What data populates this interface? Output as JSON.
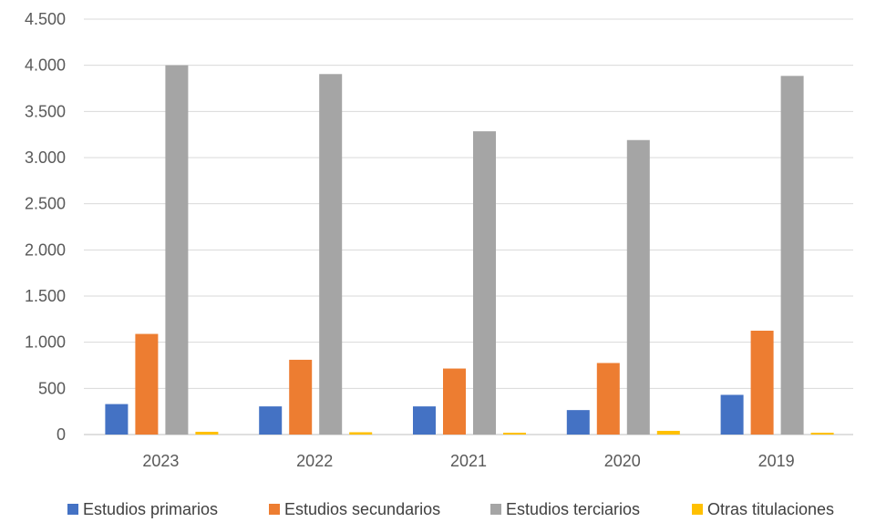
{
  "chart_data": {
    "type": "bar",
    "categories": [
      "2023",
      "2022",
      "2021",
      "2020",
      "2019"
    ],
    "ylim": [
      0,
      4500
    ],
    "yticks": [
      0,
      500,
      1000,
      1500,
      2000,
      2500,
      3000,
      3500,
      4000,
      4500
    ],
    "ytick_labels": [
      "0",
      "500",
      "1.000",
      "1.500",
      "2.000",
      "2.500",
      "3.000",
      "3.500",
      "4.000",
      "4.500"
    ],
    "grid": true,
    "legend_position": "bottom",
    "series": [
      {
        "name": "Estudios primarios",
        "color": "#4472C4",
        "values": [
          330,
          305,
          305,
          265,
          430
        ]
      },
      {
        "name": "Estudios secundarios",
        "color": "#ED7D31",
        "values": [
          1090,
          810,
          715,
          775,
          1125
        ]
      },
      {
        "name": "Estudios terciarios",
        "color": "#A5A5A5",
        "values": [
          4000,
          3905,
          3285,
          3190,
          3885
        ]
      },
      {
        "name": "Otras titulaciones",
        "color": "#FFC000",
        "values": [
          30,
          25,
          20,
          40,
          20
        ]
      }
    ]
  }
}
